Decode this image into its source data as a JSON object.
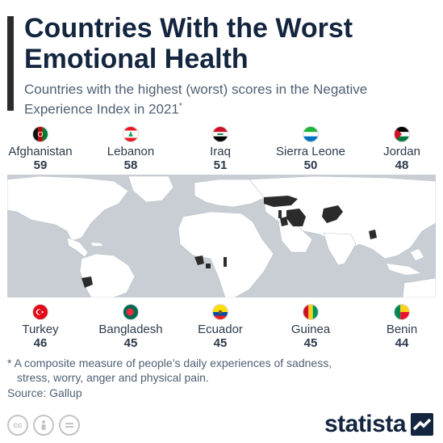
{
  "title": "Countries With the Worst Emotional Health",
  "subtitle": "Countries with the highest (worst) scores in the Negative Experience Index in 2021",
  "subtitle_mark": "*",
  "chart_data": {
    "type": "table",
    "metric": "Negative Experience Index score",
    "categories": [
      "Afghanistan",
      "Lebanon",
      "Iraq",
      "Sierra Leone",
      "Jordan",
      "Turkey",
      "Bangladesh",
      "Ecuador",
      "Guinea",
      "Benin"
    ],
    "values": [
      59,
      58,
      51,
      50,
      48,
      46,
      45,
      45,
      45,
      44
    ]
  },
  "top_row": [
    {
      "name": "Afghanistan",
      "value": "59",
      "flag_icon": "afghanistan-flag-icon"
    },
    {
      "name": "Lebanon",
      "value": "58",
      "flag_icon": "lebanon-flag-icon"
    },
    {
      "name": "Iraq",
      "value": "51",
      "flag_icon": "iraq-flag-icon"
    },
    {
      "name": "Sierra Leone",
      "value": "50",
      "flag_icon": "sierra-leone-flag-icon"
    },
    {
      "name": "Jordan",
      "value": "48",
      "flag_icon": "jordan-flag-icon"
    }
  ],
  "bottom_row": [
    {
      "name": "Turkey",
      "value": "46",
      "flag_icon": "turkey-flag-icon"
    },
    {
      "name": "Bangladesh",
      "value": "45",
      "flag_icon": "bangladesh-flag-icon"
    },
    {
      "name": "Ecuador",
      "value": "45",
      "flag_icon": "ecuador-flag-icon"
    },
    {
      "name": "Guinea",
      "value": "45",
      "flag_icon": "guinea-flag-icon"
    },
    {
      "name": "Benin",
      "value": "44",
      "flag_icon": "benin-flag-icon"
    }
  ],
  "footnote": {
    "line1": "* A composite measure of people’s daily experiences of sadness,",
    "line2": "stress, worry, anger and physical pain."
  },
  "source": "Source: Gallup",
  "brand": "statista",
  "colors": {
    "title": "#13253f",
    "accent_bar": "#2b2b2b",
    "map_water": "#c8ced4",
    "map_land": "#ffffff",
    "highlight": "#2b2b2b"
  }
}
